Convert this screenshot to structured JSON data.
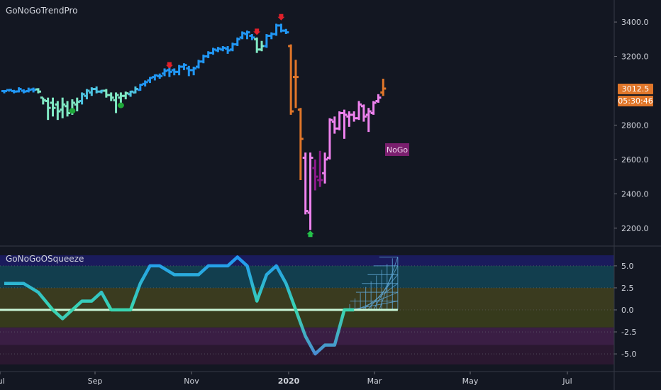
{
  "colors": {
    "background": "#131722",
    "grid": "#262b37",
    "axis_text": "#d1d4dc",
    "go_strong": "#2196f3",
    "go_weak": "#4ec3e0",
    "go_light": "#80e8c4",
    "nogo_orange": "#e0762a",
    "nogo_pink": "#ee82ee",
    "nogo_purple": "#8b1a8b",
    "squeeze_line": "#c8f5d6"
  },
  "chart_data": [
    {
      "type": "ohlc",
      "title": "GoNoGoTrendPro",
      "x_ticks": [
        "Jul",
        "Sep",
        "Nov",
        "2020",
        "Mar",
        "May",
        "Jul"
      ],
      "x_tick_positions": [
        0,
        20,
        40,
        60,
        80,
        100,
        120
      ],
      "y_ticks": [
        "3400.0",
        "3200.0",
        "2800.0",
        "2600.0",
        "2400.0",
        "2200.0"
      ],
      "y_tick_values": [
        3400,
        3200,
        2800,
        2600,
        2400,
        2200
      ],
      "ylim": [
        2100,
        3520
      ],
      "grid": false,
      "last_price_label": "3012.5",
      "countdown_label": "05:30:46",
      "annotation": "NoGo",
      "bars": [
        {
          "x": 0,
          "o": 2998,
          "h": 3000,
          "l": 2985,
          "c": 2998,
          "state": "go_strong"
        },
        {
          "x": 1,
          "o": 3004,
          "h": 3010,
          "l": 2995,
          "c": 3005,
          "state": "go_strong"
        },
        {
          "x": 2,
          "o": 2998,
          "h": 3005,
          "l": 2985,
          "c": 2995,
          "state": "go_strong"
        },
        {
          "x": 3,
          "o": 2996,
          "h": 3020,
          "l": 2990,
          "c": 3010,
          "state": "go_strong"
        },
        {
          "x": 4,
          "o": 3000,
          "h": 3008,
          "l": 2985,
          "c": 2995,
          "state": "go_strong"
        },
        {
          "x": 5,
          "o": 2998,
          "h": 3018,
          "l": 2990,
          "c": 3005,
          "state": "go_strong"
        },
        {
          "x": 6,
          "o": 3008,
          "h": 3018,
          "l": 2990,
          "c": 3005,
          "state": "go_strong"
        },
        {
          "x": 7,
          "o": 3008,
          "h": 3015,
          "l": 2985,
          "c": 2995,
          "state": "go_light"
        },
        {
          "x": 8,
          "o": 2960,
          "h": 2960,
          "l": 2920,
          "c": 2945,
          "state": "go_light"
        },
        {
          "x": 9,
          "o": 2940,
          "h": 2960,
          "l": 2830,
          "c": 2900,
          "state": "go_light"
        },
        {
          "x": 10,
          "o": 2930,
          "h": 2960,
          "l": 2850,
          "c": 2900,
          "state": "go_light"
        },
        {
          "x": 11,
          "o": 2920,
          "h": 2940,
          "l": 2830,
          "c": 2880,
          "state": "go_light"
        },
        {
          "x": 12,
          "o": 2890,
          "h": 2960,
          "l": 2840,
          "c": 2920,
          "state": "go_light"
        },
        {
          "x": 13,
          "o": 2910,
          "h": 2940,
          "l": 2850,
          "c": 2870,
          "state": "go_light"
        },
        {
          "x": 14,
          "o": 2880,
          "h": 2950,
          "l": 2860,
          "c": 2930,
          "state": "go_light"
        },
        {
          "x": 15,
          "o": 2920,
          "h": 2960,
          "l": 2880,
          "c": 2935,
          "state": "go_light"
        },
        {
          "x": 16,
          "o": 2940,
          "h": 2990,
          "l": 2920,
          "c": 2980,
          "state": "go_weak"
        },
        {
          "x": 17,
          "o": 2970,
          "h": 3010,
          "l": 2950,
          "c": 3000,
          "state": "go_weak"
        },
        {
          "x": 18,
          "o": 2990,
          "h": 3020,
          "l": 2970,
          "c": 3010,
          "state": "go_weak"
        },
        {
          "x": 19,
          "o": 3010,
          "h": 3025,
          "l": 2985,
          "c": 2995,
          "state": "go_weak"
        },
        {
          "x": 20,
          "o": 2995,
          "h": 3005,
          "l": 2985,
          "c": 3000,
          "state": "go_weak"
        },
        {
          "x": 21,
          "o": 3000,
          "h": 3010,
          "l": 2960,
          "c": 2975,
          "state": "go_light"
        },
        {
          "x": 22,
          "o": 2975,
          "h": 2990,
          "l": 2940,
          "c": 2960,
          "state": "go_light"
        },
        {
          "x": 23,
          "o": 2945,
          "h": 2990,
          "l": 2870,
          "c": 2975,
          "state": "go_light"
        },
        {
          "x": 24,
          "o": 2960,
          "h": 2990,
          "l": 2930,
          "c": 2970,
          "state": "go_light"
        },
        {
          "x": 25,
          "o": 2970,
          "h": 2995,
          "l": 2950,
          "c": 2985,
          "state": "go_light"
        },
        {
          "x": 26,
          "o": 2980,
          "h": 3000,
          "l": 2965,
          "c": 2995,
          "state": "go_weak"
        },
        {
          "x": 27,
          "o": 2990,
          "h": 3025,
          "l": 2985,
          "c": 3010,
          "state": "go_weak"
        },
        {
          "x": 28,
          "o": 3005,
          "h": 3040,
          "l": 3000,
          "c": 3035,
          "state": "go_strong"
        },
        {
          "x": 29,
          "o": 3040,
          "h": 3060,
          "l": 3025,
          "c": 3050,
          "state": "go_strong"
        },
        {
          "x": 30,
          "o": 3060,
          "h": 3080,
          "l": 3045,
          "c": 3075,
          "state": "go_strong"
        },
        {
          "x": 31,
          "o": 3080,
          "h": 3095,
          "l": 3060,
          "c": 3090,
          "state": "go_strong"
        },
        {
          "x": 32,
          "o": 3085,
          "h": 3100,
          "l": 3070,
          "c": 3085,
          "state": "go_strong"
        },
        {
          "x": 33,
          "o": 3100,
          "h": 3130,
          "l": 3085,
          "c": 3115,
          "state": "go_strong"
        },
        {
          "x": 34,
          "o": 3120,
          "h": 3140,
          "l": 3080,
          "c": 3110,
          "state": "go_strong"
        },
        {
          "x": 35,
          "o": 3120,
          "h": 3130,
          "l": 3090,
          "c": 3110,
          "state": "go_strong"
        },
        {
          "x": 36,
          "o": 3110,
          "h": 3150,
          "l": 3090,
          "c": 3140,
          "state": "go_strong"
        },
        {
          "x": 37,
          "o": 3140,
          "h": 3160,
          "l": 3120,
          "c": 3150,
          "state": "go_strong"
        },
        {
          "x": 38,
          "o": 3130,
          "h": 3145,
          "l": 3085,
          "c": 3120,
          "state": "go_strong"
        },
        {
          "x": 39,
          "o": 3120,
          "h": 3140,
          "l": 3090,
          "c": 3130,
          "state": "go_strong"
        },
        {
          "x": 40,
          "o": 3140,
          "h": 3180,
          "l": 3130,
          "c": 3170,
          "state": "go_strong"
        },
        {
          "x": 41,
          "o": 3170,
          "h": 3210,
          "l": 3160,
          "c": 3200,
          "state": "go_strong"
        },
        {
          "x": 42,
          "o": 3200,
          "h": 3230,
          "l": 3190,
          "c": 3220,
          "state": "go_strong"
        },
        {
          "x": 43,
          "o": 3220,
          "h": 3250,
          "l": 3210,
          "c": 3240,
          "state": "go_strong"
        },
        {
          "x": 44,
          "o": 3235,
          "h": 3255,
          "l": 3225,
          "c": 3245,
          "state": "go_strong"
        },
        {
          "x": 45,
          "o": 3240,
          "h": 3260,
          "l": 3230,
          "c": 3250,
          "state": "go_strong"
        },
        {
          "x": 46,
          "o": 3245,
          "h": 3260,
          "l": 3215,
          "c": 3235,
          "state": "go_strong"
        },
        {
          "x": 47,
          "o": 3240,
          "h": 3280,
          "l": 3230,
          "c": 3270,
          "state": "go_strong"
        },
        {
          "x": 48,
          "o": 3270,
          "h": 3310,
          "l": 3260,
          "c": 3300,
          "state": "go_strong"
        },
        {
          "x": 49,
          "o": 3310,
          "h": 3345,
          "l": 3300,
          "c": 3335,
          "state": "go_strong"
        },
        {
          "x": 50,
          "o": 3330,
          "h": 3350,
          "l": 3300,
          "c": 3340,
          "state": "go_strong"
        },
        {
          "x": 51,
          "o": 3320,
          "h": 3330,
          "l": 3295,
          "c": 3310,
          "state": "go_strong"
        },
        {
          "x": 52,
          "o": 3300,
          "h": 3310,
          "l": 3220,
          "c": 3240,
          "state": "go_light"
        },
        {
          "x": 53,
          "o": 3240,
          "h": 3290,
          "l": 3230,
          "c": 3260,
          "state": "go_light"
        },
        {
          "x": 54,
          "o": 3260,
          "h": 3330,
          "l": 3250,
          "c": 3320,
          "state": "go_strong"
        },
        {
          "x": 55,
          "o": 3320,
          "h": 3340,
          "l": 3300,
          "c": 3330,
          "state": "go_strong"
        },
        {
          "x": 56,
          "o": 3330,
          "h": 3390,
          "l": 3320,
          "c": 3380,
          "state": "go_strong"
        },
        {
          "x": 57,
          "o": 3380,
          "h": 3390,
          "l": 3340,
          "c": 3350,
          "state": "go_strong"
        },
        {
          "x": 58,
          "o": 3350,
          "h": 3360,
          "l": 3330,
          "c": 3340,
          "state": "go_strong"
        },
        {
          "x": 59,
          "o": 3260,
          "h": 3270,
          "l": 2860,
          "c": 2880,
          "state": "nogo_orange"
        },
        {
          "x": 60,
          "o": 3080,
          "h": 3180,
          "l": 2900,
          "c": 3080,
          "state": "nogo_orange"
        },
        {
          "x": 61,
          "o": 2890,
          "h": 2900,
          "l": 2480,
          "c": 2720,
          "state": "nogo_orange"
        },
        {
          "x": 62,
          "o": 2610,
          "h": 2640,
          "l": 2280,
          "c": 2300,
          "state": "nogo_pink"
        },
        {
          "x": 63,
          "o": 2290,
          "h": 2640,
          "l": 2190,
          "c": 2610,
          "state": "nogo_pink"
        },
        {
          "x": 64,
          "o": 2550,
          "h": 2600,
          "l": 2420,
          "c": 2500,
          "state": "nogo_purple"
        },
        {
          "x": 65,
          "o": 2480,
          "h": 2650,
          "l": 2440,
          "c": 2480,
          "state": "nogo_purple"
        },
        {
          "x": 66,
          "o": 2520,
          "h": 2640,
          "l": 2460,
          "c": 2600,
          "state": "nogo_pink"
        },
        {
          "x": 67,
          "o": 2610,
          "h": 2840,
          "l": 2600,
          "c": 2830,
          "state": "nogo_pink"
        },
        {
          "x": 68,
          "o": 2820,
          "h": 2850,
          "l": 2750,
          "c": 2780,
          "state": "nogo_pink"
        },
        {
          "x": 69,
          "o": 2780,
          "h": 2880,
          "l": 2770,
          "c": 2870,
          "state": "nogo_pink"
        },
        {
          "x": 70,
          "o": 2870,
          "h": 2890,
          "l": 2720,
          "c": 2860,
          "state": "nogo_pink"
        },
        {
          "x": 71,
          "o": 2850,
          "h": 2880,
          "l": 2790,
          "c": 2860,
          "state": "nogo_pink"
        },
        {
          "x": 72,
          "o": 2860,
          "h": 2880,
          "l": 2820,
          "c": 2840,
          "state": "nogo_pink"
        },
        {
          "x": 73,
          "o": 2840,
          "h": 2940,
          "l": 2830,
          "c": 2920,
          "state": "nogo_pink"
        },
        {
          "x": 74,
          "o": 2910,
          "h": 2920,
          "l": 2820,
          "c": 2850,
          "state": "nogo_pink"
        },
        {
          "x": 75,
          "o": 2860,
          "h": 2900,
          "l": 2760,
          "c": 2880,
          "state": "nogo_pink"
        },
        {
          "x": 76,
          "o": 2870,
          "h": 2940,
          "l": 2860,
          "c": 2930,
          "state": "nogo_pink"
        },
        {
          "x": 77,
          "o": 2940,
          "h": 2980,
          "l": 2930,
          "c": 2960,
          "state": "nogo_pink"
        },
        {
          "x": 78,
          "o": 2990,
          "h": 3070,
          "l": 2970,
          "c": 3012.5,
          "state": "nogo_orange"
        }
      ],
      "markers": [
        {
          "x": 14,
          "price": 2883,
          "type": "dot"
        },
        {
          "x": 24,
          "price": 2915,
          "type": "dot"
        },
        {
          "x": 34,
          "price": 3150,
          "type": "down-arrow"
        },
        {
          "x": 52,
          "price": 3345,
          "type": "down-arrow"
        },
        {
          "x": 57,
          "price": 3430,
          "type": "down-arrow"
        },
        {
          "x": 63,
          "price": 2165,
          "type": "up-arrow"
        }
      ]
    },
    {
      "type": "line",
      "title": "GoNoGoOSqueeze",
      "y_ticks": [
        "5.0",
        "2.5",
        "0.0",
        "-2.5",
        "-5.0"
      ],
      "y_tick_values": [
        5,
        2.5,
        0,
        -2.5,
        -5
      ],
      "ylim": [
        -6.2,
        6.2
      ],
      "zero_line": 0,
      "x": [
        0,
        4,
        7,
        10,
        12,
        14,
        16,
        18,
        20,
        22,
        24,
        26,
        28,
        30,
        32,
        35,
        38,
        40,
        42,
        44,
        46,
        48,
        50,
        52,
        54,
        56,
        58,
        60,
        62,
        64,
        66,
        68,
        70,
        72
      ],
      "values": [
        3,
        3,
        2,
        0,
        -1,
        0,
        1,
        1,
        2,
        0,
        0,
        0,
        3,
        5,
        5,
        4,
        4,
        4,
        5,
        5,
        5,
        6,
        5,
        1,
        4,
        5,
        3,
        0,
        -3,
        -5,
        -4,
        -4,
        0,
        0
      ],
      "grid_x_range": [
        70,
        81
      ],
      "grid_levels": [
        0,
        1,
        2,
        3,
        4,
        5,
        6
      ]
    }
  ]
}
